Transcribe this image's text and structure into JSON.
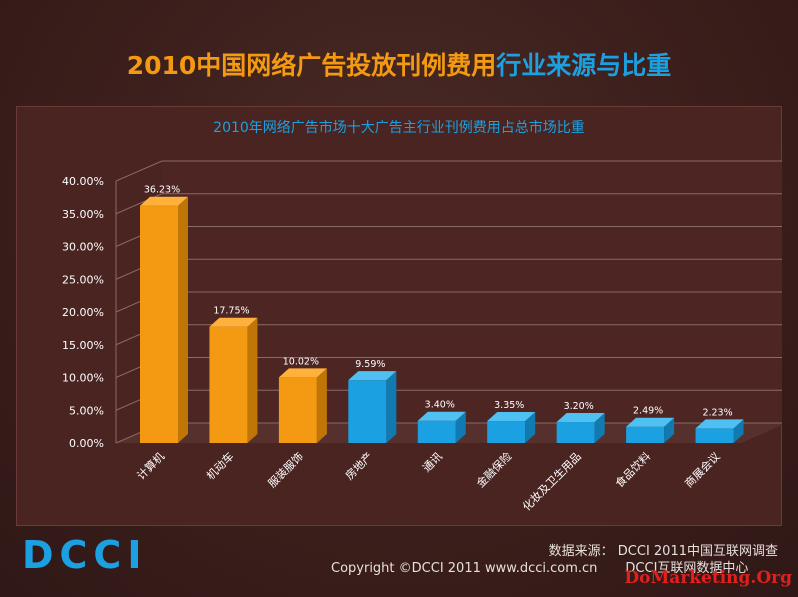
{
  "header": {
    "title_part1": "2010中国网络广告投放刊例费用",
    "title_part2": "行业来源与比重"
  },
  "chart_data": {
    "type": "bar",
    "title": "2010年网络广告市场十大广告主行业刊例费用占总市场比重",
    "categories": [
      "计算机",
      "机动车",
      "服装服饰",
      "房地产",
      "通讯",
      "金融保险",
      "化妆及卫生用品",
      "食品饮料",
      "商展会议"
    ],
    "values": [
      36.23,
      17.75,
      10.02,
      9.59,
      3.4,
      3.35,
      3.2,
      2.49,
      2.23
    ],
    "value_labels": [
      "36.23%",
      "17.75%",
      "10.02%",
      "9.59%",
      "3.40%",
      "3.35%",
      "3.20%",
      "2.49%",
      "2.23%"
    ],
    "y_ticks": [
      "0.00%",
      "5.00%",
      "10.00%",
      "15.00%",
      "20.00%",
      "25.00%",
      "30.00%",
      "35.00%",
      "40.00%"
    ],
    "ylim": [
      0,
      40
    ],
    "grid": true,
    "colors": [
      "#f39a12",
      "#f39a12",
      "#f39a12",
      "#1ba1e2",
      "#1ba1e2",
      "#1ba1e2",
      "#1ba1e2",
      "#1ba1e2",
      "#1ba1e2"
    ]
  },
  "footer": {
    "source": "数据来源： DCCI 2011中国互联网调查",
    "copyright": "Copyright ©DCCI 2011 www.dcci.com.cn",
    "center": "DCCI互联网数据中心",
    "watermark": "DoMarketing.Org",
    "logo_text": "DCCI"
  }
}
